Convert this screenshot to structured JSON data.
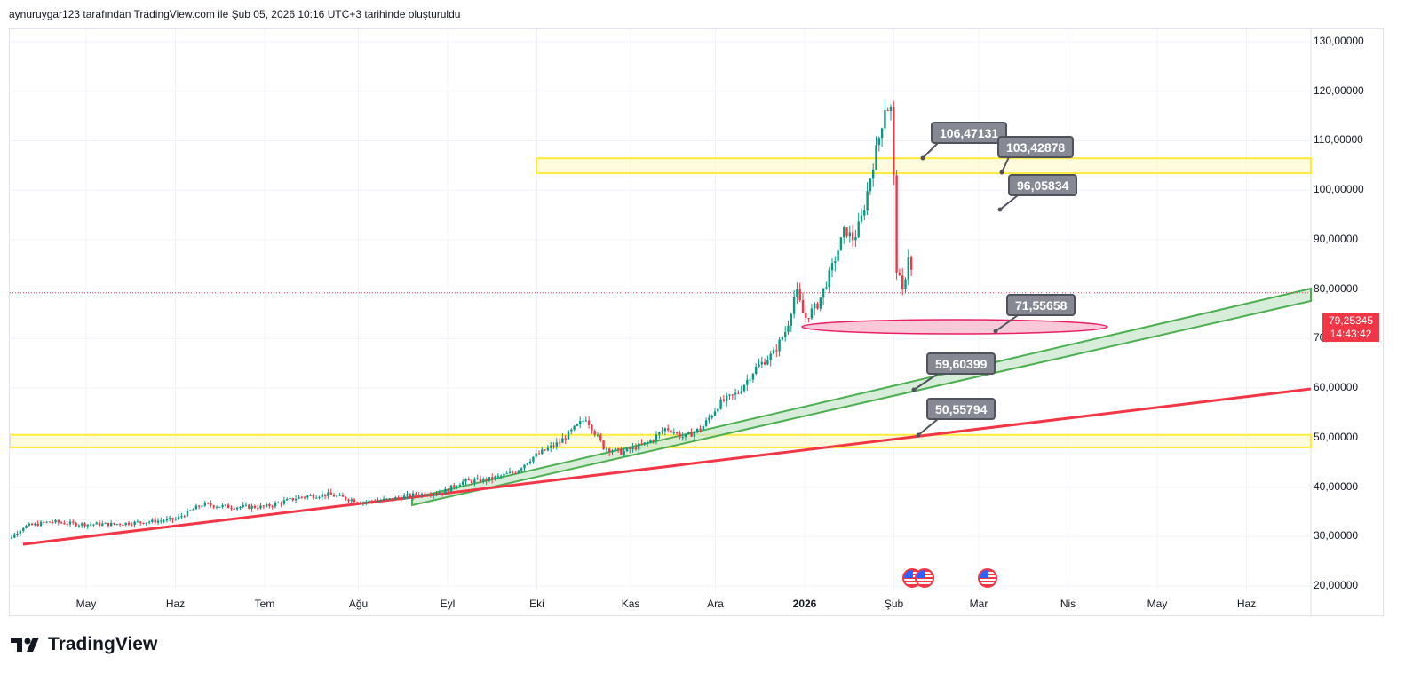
{
  "header": {
    "text": "aynuruygar123 tarafından TradingView.com ile Şub 05, 2026 10:16 UTC+3 tarihinde oluşturuldu"
  },
  "logo": {
    "text": "TradingView"
  },
  "price_box": {
    "price": "79,25345",
    "countdown": "14:43:42"
  },
  "colors": {
    "up": "#089981",
    "down": "#f23645",
    "zone": "#ffeb3b",
    "channel": "#4caf50",
    "trend": "#f23645",
    "ellipse": "#e91e63"
  },
  "chart_data": {
    "type": "candlestick",
    "title": "",
    "ylim": [
      20,
      130
    ],
    "y_ticks": [
      "130,00000",
      "120,00000",
      "110,00000",
      "100,00000",
      "90,00000",
      "80,00000",
      "70,00000",
      "60,00000",
      "50,00000",
      "40,00000",
      "30,00000",
      "20,00000"
    ],
    "y_tick_values": [
      130,
      120,
      110,
      100,
      90,
      80,
      70,
      60,
      50,
      40,
      30,
      20
    ],
    "x_ticks": [
      {
        "label": "May",
        "bold": false,
        "m": 1.9
      },
      {
        "label": "Haz",
        "bold": false,
        "m": 2.9
      },
      {
        "label": "Tem",
        "bold": false,
        "m": 3.9
      },
      {
        "label": "Ağu",
        "bold": false,
        "m": 4.95
      },
      {
        "label": "Eyl",
        "bold": false,
        "m": 5.95
      },
      {
        "label": "Eki",
        "bold": false,
        "m": 6.95
      },
      {
        "label": "Kas",
        "bold": false,
        "m": 8.0
      },
      {
        "label": "Ara",
        "bold": false,
        "m": 8.95
      },
      {
        "label": "2026",
        "bold": true,
        "m": 9.95
      },
      {
        "label": "Şub",
        "bold": false,
        "m": 10.95
      },
      {
        "label": "Mar",
        "bold": false,
        "m": 11.9
      },
      {
        "label": "Nis",
        "bold": false,
        "m": 12.9
      },
      {
        "label": "May",
        "bold": false,
        "m": 13.9
      },
      {
        "label": "Haz",
        "bold": false,
        "m": 14.9
      }
    ],
    "price_path_note": "weekly closes, month index m",
    "path": [
      [
        0.9,
        34
      ],
      [
        1.0,
        29
      ],
      [
        1.2,
        32
      ],
      [
        1.5,
        33
      ],
      [
        1.8,
        32.5
      ],
      [
        2.2,
        32.5
      ],
      [
        2.6,
        33
      ],
      [
        2.9,
        33.5
      ],
      [
        3.2,
        36.5
      ],
      [
        3.5,
        36
      ],
      [
        3.9,
        36
      ],
      [
        4.3,
        38
      ],
      [
        4.6,
        38.5
      ],
      [
        5.0,
        37
      ],
      [
        5.3,
        37.5
      ],
      [
        5.6,
        38.5
      ],
      [
        5.9,
        39
      ],
      [
        6.1,
        41
      ],
      [
        6.4,
        41.5
      ],
      [
        6.7,
        43
      ],
      [
        6.9,
        46
      ],
      [
        7.2,
        49
      ],
      [
        7.5,
        54
      ],
      [
        7.7,
        48
      ],
      [
        7.9,
        47
      ],
      [
        8.2,
        49
      ],
      [
        8.4,
        52
      ],
      [
        8.6,
        50
      ],
      [
        8.8,
        52
      ],
      [
        9.0,
        57
      ],
      [
        9.2,
        59
      ],
      [
        9.4,
        64
      ],
      [
        9.6,
        67
      ],
      [
        9.75,
        72
      ],
      [
        9.85,
        80
      ],
      [
        9.95,
        74
      ],
      [
        10.1,
        77
      ],
      [
        10.25,
        84
      ],
      [
        10.4,
        92
      ],
      [
        10.5,
        90
      ],
      [
        10.6,
        95
      ],
      [
        10.7,
        104
      ],
      [
        10.8,
        112
      ],
      [
        10.85,
        117
      ],
      [
        10.93,
        116
      ],
      [
        10.97,
        85
      ],
      [
        11.05,
        79
      ],
      [
        11.12,
        88
      ],
      [
        11.17,
        79.25
      ]
    ],
    "current_price": 79.25345,
    "annotations": [
      {
        "type": "zone",
        "from": 103.42878,
        "to": 106.47131
      },
      {
        "type": "zone",
        "from": 48,
        "to": 50.55794
      },
      {
        "type": "channel"
      },
      {
        "type": "trendline"
      },
      {
        "type": "ellipse",
        "level": 71.55658
      }
    ],
    "callouts": [
      "106,47131",
      "103,42878",
      "96,05834",
      "71,55658",
      "59,60399",
      "50,55794"
    ]
  }
}
